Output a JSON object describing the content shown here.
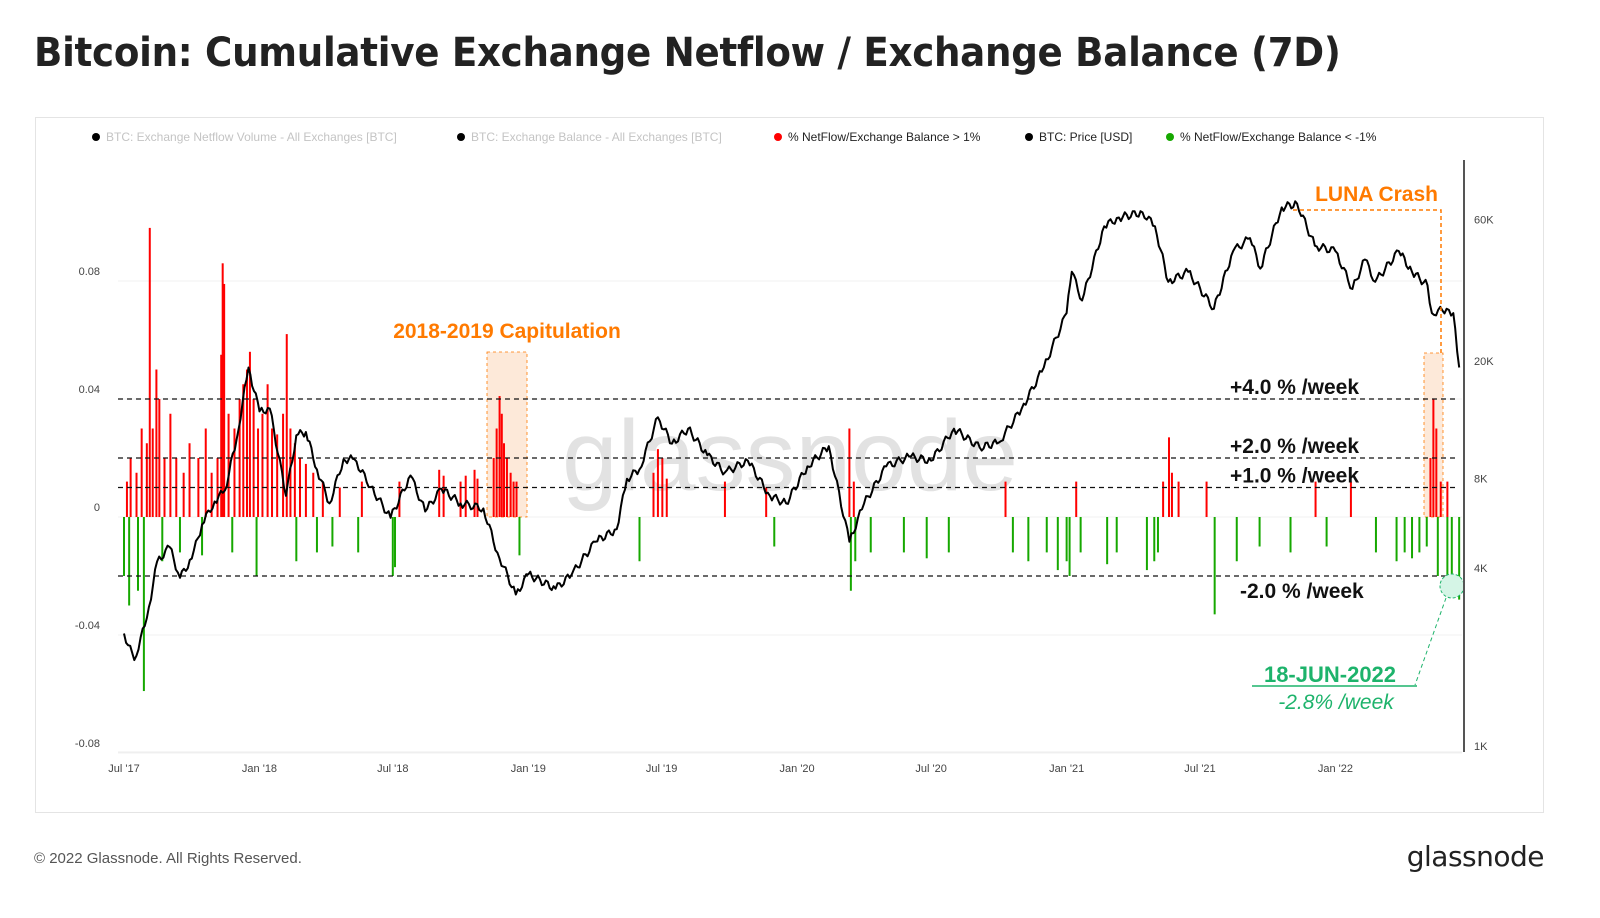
{
  "title": "Bitcoin: Cumulative Exchange Netflow / Exchange Balance (7D)",
  "footer": {
    "copyright": "© 2022 Glassnode. All Rights Reserved.",
    "logo": "glassnode"
  },
  "colors": {
    "price": "#000000",
    "positive": "#ff0000",
    "negative": "#16a800",
    "annotation_orange": "#ff7a00",
    "annotation_green": "#1db36b"
  },
  "chart_data": {
    "type": "bar",
    "title": "Bitcoin: Cumulative Exchange Netflow / Exchange Balance (7D)",
    "watermark": "glassnode",
    "legend": [
      {
        "label": "BTC: Exchange Netflow Volume - All Exchanges [BTC]",
        "color": "#000000",
        "active": false
      },
      {
        "label": "BTC: Exchange Balance - All Exchanges [BTC]",
        "color": "#000000",
        "active": false
      },
      {
        "label": "% NetFlow/Exchange Balance > 1%",
        "color": "#ff0000",
        "active": true
      },
      {
        "label": "BTC: Price [USD]",
        "color": "#000000",
        "active": true
      },
      {
        "label": "% NetFlow/Exchange Balance < -1%",
        "color": "#16a800",
        "active": true
      }
    ],
    "legend_position": "top",
    "x_ticks": [
      "Jul '17",
      "Jan '18",
      "Jul '18",
      "Jan '19",
      "Jul '19",
      "Jan '20",
      "Jul '20",
      "Jan '21",
      "Jul '21",
      "Jan '22"
    ],
    "x_tick_dates": [
      "2017-07-01",
      "2018-01-01",
      "2018-07-01",
      "2019-01-01",
      "2019-07-01",
      "2020-01-01",
      "2020-07-01",
      "2021-01-01",
      "2021-07-01",
      "2022-01-01"
    ],
    "y_left": {
      "ticks": [
        "0.08",
        "0.04",
        "0",
        "-0.04",
        "-0.08"
      ],
      "values": [
        0.08,
        0.04,
        0,
        -0.04,
        -0.08
      ],
      "range": [
        -0.08,
        0.08
      ]
    },
    "y_right": {
      "scale": "log",
      "ticks": [
        "60K",
        "20K",
        "8K",
        "4K",
        "1K"
      ],
      "values": [
        60000,
        20000,
        8000,
        4000,
        1000
      ]
    },
    "grid": true,
    "levels": [
      {
        "value": 0.04,
        "label": "+4.0 % /week"
      },
      {
        "value": 0.02,
        "label": "+2.0 % /week"
      },
      {
        "value": 0.01,
        "label": "+1.0 % /week"
      },
      {
        "value": -0.02,
        "label": "-2.0 % /week"
      }
    ],
    "annotations": [
      {
        "label": "2018-2019 Capitulation",
        "start": "2018-11-05",
        "end": "2018-12-18"
      },
      {
        "label": "LUNA Crash",
        "start": "2022-05-06",
        "end": "2022-05-28"
      },
      {
        "label": "18-JUN-2022",
        "sublabel": "-2.8% /week",
        "date": "2022-06-18",
        "value": -0.028
      }
    ],
    "series_positive": [
      [
        "2017-07-05",
        0.012
      ],
      [
        "2017-07-10",
        0.02
      ],
      [
        "2017-07-18",
        0.015
      ],
      [
        "2017-07-25",
        0.03
      ],
      [
        "2017-08-01",
        0.025
      ],
      [
        "2017-08-05",
        0.098
      ],
      [
        "2017-08-09",
        0.03
      ],
      [
        "2017-08-14",
        0.05
      ],
      [
        "2017-08-18",
        0.04
      ],
      [
        "2017-08-25",
        0.02
      ],
      [
        "2017-09-02",
        0.035
      ],
      [
        "2017-09-10",
        0.02
      ],
      [
        "2017-09-20",
        0.015
      ],
      [
        "2017-09-28",
        0.025
      ],
      [
        "2017-10-10",
        0.02
      ],
      [
        "2017-10-20",
        0.03
      ],
      [
        "2017-10-28",
        0.015
      ],
      [
        "2017-11-05",
        0.02
      ],
      [
        "2017-11-10",
        0.055
      ],
      [
        "2017-11-12",
        0.086
      ],
      [
        "2017-11-14",
        0.079
      ],
      [
        "2017-11-20",
        0.035
      ],
      [
        "2017-11-28",
        0.03
      ],
      [
        "2017-12-05",
        0.04
      ],
      [
        "2017-12-10",
        0.045
      ],
      [
        "2017-12-15",
        0.05
      ],
      [
        "2017-12-19",
        0.056
      ],
      [
        "2017-12-24",
        0.04
      ],
      [
        "2017-12-30",
        0.03
      ],
      [
        "2018-01-05",
        0.035
      ],
      [
        "2018-01-12",
        0.045
      ],
      [
        "2018-01-18",
        0.03
      ],
      [
        "2018-01-25",
        0.028
      ],
      [
        "2018-02-02",
        0.035
      ],
      [
        "2018-02-07",
        0.062
      ],
      [
        "2018-02-12",
        0.03
      ],
      [
        "2018-02-18",
        0.025
      ],
      [
        "2018-02-25",
        0.02
      ],
      [
        "2018-03-05",
        0.018
      ],
      [
        "2018-03-15",
        0.015
      ],
      [
        "2018-03-28",
        0.012
      ],
      [
        "2018-04-20",
        0.01
      ],
      [
        "2018-05-20",
        0.012
      ],
      [
        "2018-07-10",
        0.012
      ],
      [
        "2018-09-02",
        0.016
      ],
      [
        "2018-09-08",
        0.014
      ],
      [
        "2018-10-01",
        0.012
      ],
      [
        "2018-10-08",
        0.014
      ],
      [
        "2018-10-20",
        0.016
      ],
      [
        "2018-10-24",
        0.013
      ],
      [
        "2018-11-15",
        0.02
      ],
      [
        "2018-11-19",
        0.03
      ],
      [
        "2018-11-23",
        0.041
      ],
      [
        "2018-11-26",
        0.035
      ],
      [
        "2018-11-29",
        0.025
      ],
      [
        "2018-12-03",
        0.02
      ],
      [
        "2018-12-08",
        0.015
      ],
      [
        "2018-12-12",
        0.012
      ],
      [
        "2018-12-16",
        0.012
      ],
      [
        "2019-06-20",
        0.015
      ],
      [
        "2019-06-26",
        0.023
      ],
      [
        "2019-07-02",
        0.02
      ],
      [
        "2019-07-08",
        0.013
      ],
      [
        "2019-09-25",
        0.012
      ],
      [
        "2019-11-20",
        0.01
      ],
      [
        "2020-03-12",
        0.03
      ],
      [
        "2020-03-18",
        0.012
      ],
      [
        "2020-10-10",
        0.012
      ],
      [
        "2021-01-14",
        0.012
      ],
      [
        "2021-05-12",
        0.012
      ],
      [
        "2021-05-20",
        0.027
      ],
      [
        "2021-05-24",
        0.015
      ],
      [
        "2021-06-02",
        0.012
      ],
      [
        "2021-07-10",
        0.012
      ],
      [
        "2021-12-05",
        0.012
      ],
      [
        "2022-01-22",
        0.012
      ],
      [
        "2022-05-10",
        0.02
      ],
      [
        "2022-05-14",
        0.04
      ],
      [
        "2022-05-18",
        0.03
      ],
      [
        "2022-05-24",
        0.012
      ],
      [
        "2022-06-02",
        0.012
      ]
    ],
    "series_negative": [
      [
        "2017-07-01",
        -0.02
      ],
      [
        "2017-07-08",
        -0.03
      ],
      [
        "2017-07-20",
        -0.025
      ],
      [
        "2017-07-28",
        -0.059
      ],
      [
        "2017-08-22",
        -0.015
      ],
      [
        "2017-09-15",
        -0.012
      ],
      [
        "2017-10-15",
        -0.013
      ],
      [
        "2017-11-25",
        -0.012
      ],
      [
        "2017-12-28",
        -0.02
      ],
      [
        "2018-02-20",
        -0.015
      ],
      [
        "2018-03-20",
        -0.012
      ],
      [
        "2018-04-10",
        -0.01
      ],
      [
        "2018-05-15",
        -0.012
      ],
      [
        "2018-07-01",
        -0.02
      ],
      [
        "2018-07-04",
        -0.017
      ],
      [
        "2018-12-20",
        -0.013
      ],
      [
        "2019-06-01",
        -0.015
      ],
      [
        "2019-12-01",
        -0.01
      ],
      [
        "2020-03-14",
        -0.025
      ],
      [
        "2020-03-20",
        -0.015
      ],
      [
        "2020-04-10",
        -0.012
      ],
      [
        "2020-05-25",
        -0.012
      ],
      [
        "2020-06-25",
        -0.014
      ],
      [
        "2020-07-25",
        -0.012
      ],
      [
        "2020-10-20",
        -0.012
      ],
      [
        "2020-11-10",
        -0.015
      ],
      [
        "2020-12-05",
        -0.012
      ],
      [
        "2020-12-20",
        -0.018
      ],
      [
        "2021-01-01",
        -0.015
      ],
      [
        "2021-01-05",
        -0.02
      ],
      [
        "2021-01-20",
        -0.012
      ],
      [
        "2021-02-25",
        -0.016
      ],
      [
        "2021-03-10",
        -0.012
      ],
      [
        "2021-04-20",
        -0.018
      ],
      [
        "2021-04-30",
        -0.015
      ],
      [
        "2021-05-05",
        -0.012
      ],
      [
        "2021-07-21",
        -0.033
      ],
      [
        "2021-08-20",
        -0.015
      ],
      [
        "2021-09-20",
        -0.01
      ],
      [
        "2021-11-01",
        -0.012
      ],
      [
        "2021-12-20",
        -0.01
      ],
      [
        "2022-02-25",
        -0.012
      ],
      [
        "2022-03-25",
        -0.015
      ],
      [
        "2022-04-05",
        -0.012
      ],
      [
        "2022-04-15",
        -0.014
      ],
      [
        "2022-04-25",
        -0.012
      ],
      [
        "2022-05-05",
        -0.01
      ],
      [
        "2022-05-20",
        -0.02
      ],
      [
        "2022-06-02",
        -0.022
      ],
      [
        "2022-06-08",
        -0.02
      ],
      [
        "2022-06-18",
        -0.028
      ]
    ],
    "price": [
      [
        "2017-07-01",
        2400
      ],
      [
        "2017-07-15",
        1950
      ],
      [
        "2017-08-01",
        2700
      ],
      [
        "2017-08-15",
        4200
      ],
      [
        "2017-09-01",
        4700
      ],
      [
        "2017-09-15",
        3700
      ],
      [
        "2017-10-01",
        4300
      ],
      [
        "2017-10-15",
        5600
      ],
      [
        "2017-11-01",
        6700
      ],
      [
        "2017-11-15",
        7300
      ],
      [
        "2017-12-01",
        10900
      ],
      [
        "2017-12-17",
        19000
      ],
      [
        "2018-01-01",
        13500
      ],
      [
        "2018-01-15",
        13800
      ],
      [
        "2018-02-06",
        7000
      ],
      [
        "2018-02-20",
        11200
      ],
      [
        "2018-03-05",
        11500
      ],
      [
        "2018-03-20",
        8600
      ],
      [
        "2018-04-06",
        6600
      ],
      [
        "2018-04-25",
        9300
      ],
      [
        "2018-05-10",
        9300
      ],
      [
        "2018-06-01",
        7500
      ],
      [
        "2018-06-28",
        5900
      ],
      [
        "2018-07-25",
        8200
      ],
      [
        "2018-08-14",
        6200
      ],
      [
        "2018-09-05",
        7400
      ],
      [
        "2018-10-01",
        6600
      ],
      [
        "2018-11-01",
        6350
      ],
      [
        "2018-11-20",
        4500
      ],
      [
        "2018-12-15",
        3250
      ],
      [
        "2019-01-01",
        3800
      ],
      [
        "2019-02-07",
        3400
      ],
      [
        "2019-03-01",
        3800
      ],
      [
        "2019-04-02",
        4900
      ],
      [
        "2019-05-01",
        5400
      ],
      [
        "2019-05-15",
        8000
      ],
      [
        "2019-06-01",
        8600
      ],
      [
        "2019-06-26",
        12900
      ],
      [
        "2019-07-15",
        10500
      ],
      [
        "2019-08-06",
        11800
      ],
      [
        "2019-09-01",
        9600
      ],
      [
        "2019-09-25",
        8400
      ],
      [
        "2019-10-26",
        9200
      ],
      [
        "2019-11-25",
        7000
      ],
      [
        "2019-12-17",
        6600
      ],
      [
        "2020-01-15",
        8800
      ],
      [
        "2020-02-13",
        10300
      ],
      [
        "2020-03-12",
        4900
      ],
      [
        "2020-04-01",
        6600
      ],
      [
        "2020-05-01",
        8800
      ],
      [
        "2020-06-01",
        9500
      ],
      [
        "2020-07-01",
        9200
      ],
      [
        "2020-08-01",
        11800
      ],
      [
        "2020-09-05",
        10200
      ],
      [
        "2020-10-01",
        10600
      ],
      [
        "2020-11-01",
        13800
      ],
      [
        "2020-12-01",
        19000
      ],
      [
        "2021-01-01",
        29000
      ],
      [
        "2021-01-08",
        40000
      ],
      [
        "2021-01-22",
        32000
      ],
      [
        "2021-02-21",
        57000
      ],
      [
        "2021-03-13",
        61000
      ],
      [
        "2021-04-14",
        63500
      ],
      [
        "2021-05-01",
        57000
      ],
      [
        "2021-05-19",
        37000
      ],
      [
        "2021-06-15",
        40000
      ],
      [
        "2021-07-20",
        30000
      ],
      [
        "2021-08-15",
        47000
      ],
      [
        "2021-09-07",
        52000
      ],
      [
        "2021-09-21",
        41000
      ],
      [
        "2021-10-20",
        66000
      ],
      [
        "2021-11-10",
        68000
      ],
      [
        "2021-12-04",
        49000
      ],
      [
        "2022-01-01",
        47000
      ],
      [
        "2022-01-24",
        35000
      ],
      [
        "2022-02-10",
        44000
      ],
      [
        "2022-02-24",
        37000
      ],
      [
        "2022-03-28",
        47000
      ],
      [
        "2022-04-15",
        40000
      ],
      [
        "2022-05-06",
        36000
      ],
      [
        "2022-05-12",
        29000
      ],
      [
        "2022-06-01",
        30000
      ],
      [
        "2022-06-10",
        29000
      ],
      [
        "2022-06-18",
        19000
      ]
    ]
  }
}
